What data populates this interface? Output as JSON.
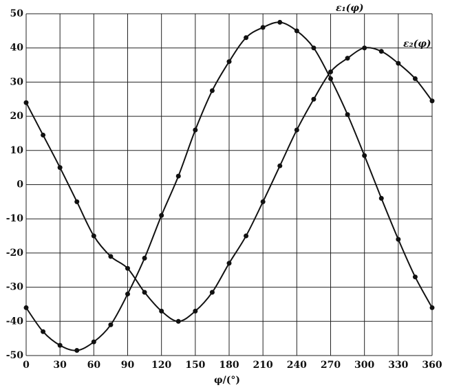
{
  "chart_data": {
    "type": "line",
    "x_label": "φ/(°)",
    "x": [
      0,
      15,
      30,
      45,
      60,
      75,
      90,
      105,
      120,
      135,
      150,
      165,
      180,
      195,
      210,
      225,
      240,
      255,
      270,
      285,
      300,
      315,
      330,
      345,
      360
    ],
    "series": [
      {
        "name": "ε₁(φ)",
        "color": "#111111",
        "values": [
          -36,
          -43,
          -47,
          -48.5,
          -46,
          -41,
          -32,
          -21.5,
          -9,
          2.5,
          16,
          27.5,
          36,
          43,
          46,
          47.5,
          45,
          40,
          31,
          20.5,
          8.5,
          -4,
          -16,
          -27,
          -36
        ]
      },
      {
        "name": "ε₂(φ)",
        "color": "#111111",
        "values": [
          24,
          14.5,
          5,
          -5,
          -15,
          -21,
          -24.5,
          -31.5,
          -37,
          -40,
          -37,
          -31.5,
          -23,
          -15,
          -5,
          5.5,
          16,
          25,
          33,
          37,
          40,
          39,
          35.5,
          31,
          24.5
        ]
      }
    ],
    "xlim": [
      0,
      360
    ],
    "xticks": [
      0,
      30,
      60,
      90,
      120,
      150,
      180,
      210,
      240,
      270,
      300,
      330,
      360
    ],
    "ylim": [
      -50,
      50
    ],
    "yticks": [
      -50,
      -40,
      -30,
      -20,
      -10,
      0,
      10,
      20,
      30,
      40,
      50
    ],
    "grid": true
  }
}
